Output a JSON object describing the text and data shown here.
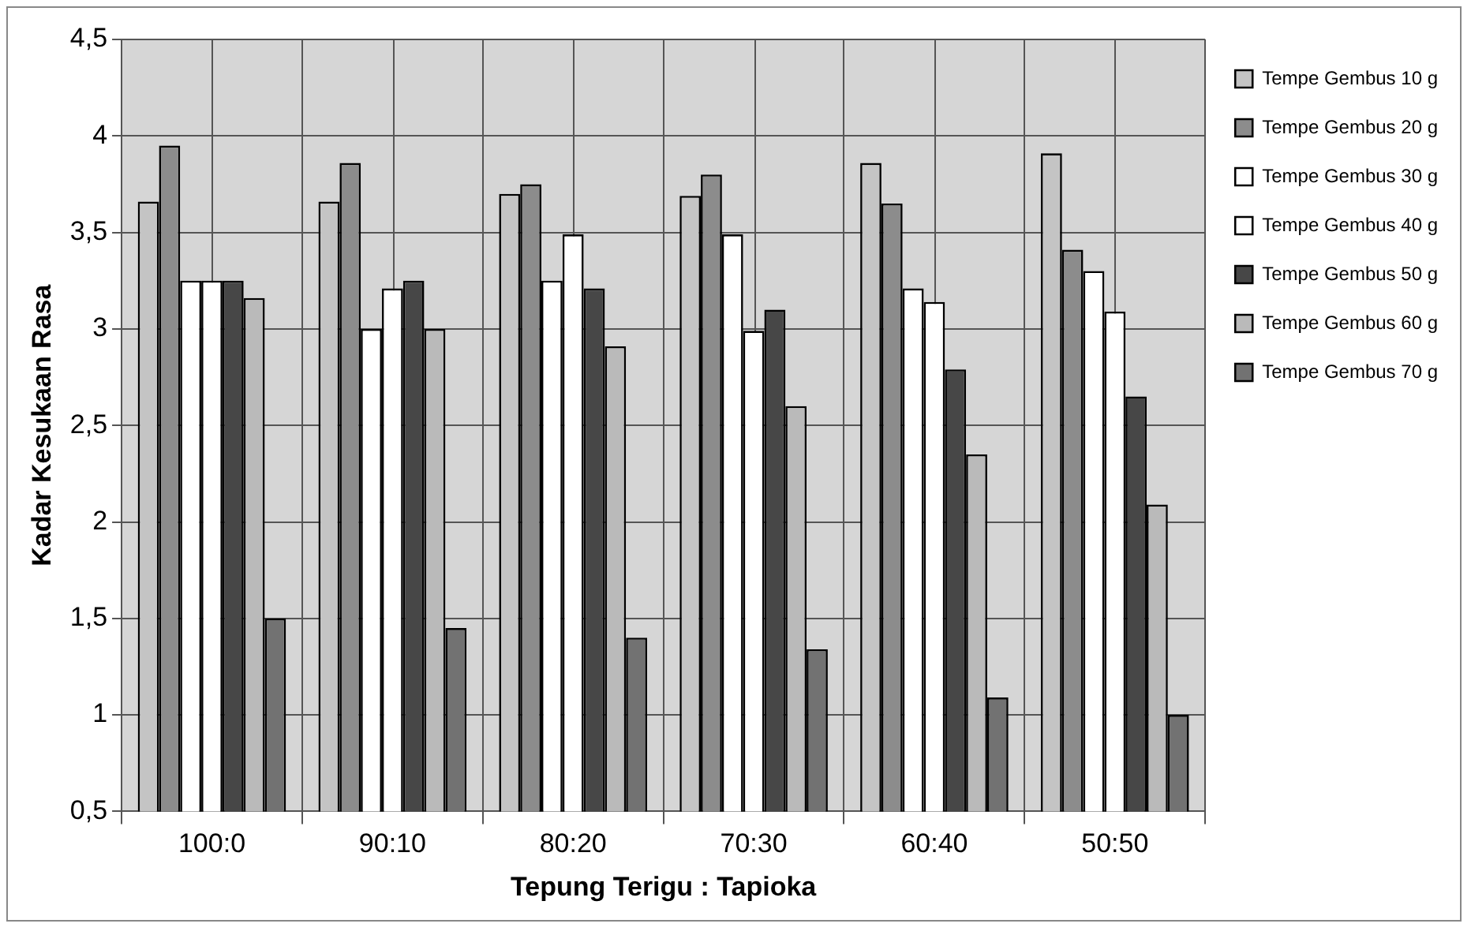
{
  "chart_data": {
    "type": "bar",
    "xlabel": "Tepung Terigu : Tapioka",
    "ylabel": "Kadar Kesukaan Rasa",
    "categories": [
      "100:0",
      "90:10",
      "80:20",
      "70:30",
      "60:40",
      "50:50"
    ],
    "series": [
      {
        "name": "Tempe Gembus 10 g",
        "color": "#c4c4c4",
        "values": [
          3.66,
          3.66,
          3.7,
          3.69,
          3.86,
          3.91
        ]
      },
      {
        "name": "Tempe Gembus 20 g",
        "color": "#8c8c8c",
        "values": [
          3.95,
          3.86,
          3.75,
          3.8,
          3.65,
          3.41
        ]
      },
      {
        "name": "Tempe Gembus 30 g",
        "color": "#ffffff",
        "values": [
          3.25,
          3.0,
          3.25,
          3.49,
          3.21,
          3.3
        ]
      },
      {
        "name": "Tempe Gembus 40 g",
        "color": "#ffffff",
        "values": [
          3.25,
          3.21,
          3.49,
          2.99,
          3.14,
          3.09
        ]
      },
      {
        "name": "Tempe Gembus 50 g",
        "color": "#474747",
        "values": [
          3.25,
          3.25,
          3.21,
          3.1,
          2.79,
          2.65
        ]
      },
      {
        "name": "Tempe Gembus 60 g",
        "color": "#bababa",
        "values": [
          3.16,
          3.0,
          2.91,
          2.6,
          2.35,
          2.09
        ]
      },
      {
        "name": "Tempe Gembus 70 g",
        "color": "#727272",
        "values": [
          1.5,
          1.45,
          1.4,
          1.34,
          1.09,
          1.0
        ]
      }
    ],
    "ylim": [
      0.5,
      4.5
    ],
    "yticks": [
      {
        "value": 0.5,
        "label": "0,5"
      },
      1,
      {
        "value": 1.5,
        "label": "1,5"
      },
      2,
      {
        "value": 2.5,
        "label": "2,5"
      },
      3,
      {
        "value": 3.5,
        "label": "3,5"
      },
      4,
      {
        "value": 4.5,
        "label": "4,5"
      }
    ],
    "grid": true,
    "legend": "right"
  }
}
